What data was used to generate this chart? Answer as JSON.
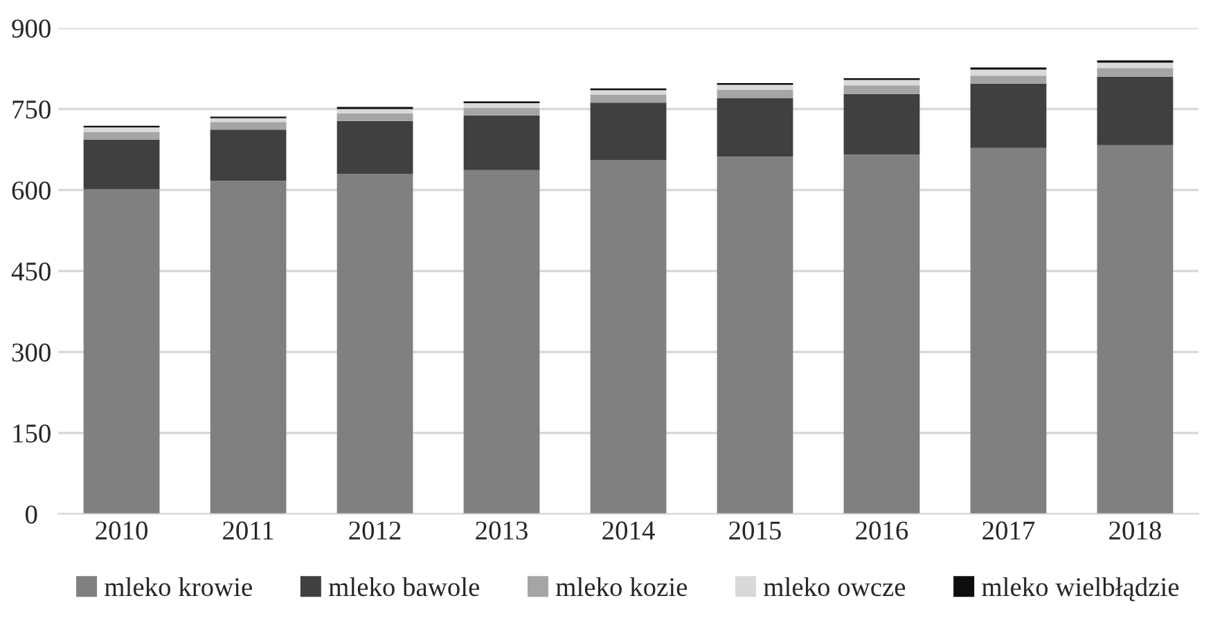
{
  "chart_data": {
    "type": "bar",
    "stacked": true,
    "categories": [
      "2010",
      "2011",
      "2012",
      "2013",
      "2014",
      "2015",
      "2016",
      "2017",
      "2018"
    ],
    "series": [
      {
        "name": "mleko krowie",
        "color": "#808080",
        "values": [
          602,
          617,
          630,
          637,
          655,
          662,
          666,
          678,
          683
        ]
      },
      {
        "name": "mleko bawole",
        "color": "#404040",
        "values": [
          91,
          95,
          98,
          101,
          107,
          108,
          112,
          119,
          127
        ]
      },
      {
        "name": "mleko kozie",
        "color": "#a5a5a5",
        "values": [
          14,
          14,
          14,
          14,
          15,
          16,
          16,
          15,
          16
        ]
      },
      {
        "name": "mleko owcze",
        "color": "#d9d9d9",
        "values": [
          9,
          7,
          8,
          9,
          8,
          9,
          10,
          11,
          10
        ]
      },
      {
        "name": "mleko wielbłądzie",
        "color": "#0d0d0d",
        "values": [
          3,
          3,
          4,
          3,
          3,
          3,
          3,
          4,
          4
        ]
      }
    ],
    "ylim": [
      0,
      900
    ],
    "yticks": [
      0,
      150,
      300,
      450,
      600,
      750,
      900
    ],
    "grid": "y",
    "legend": "bottom"
  }
}
